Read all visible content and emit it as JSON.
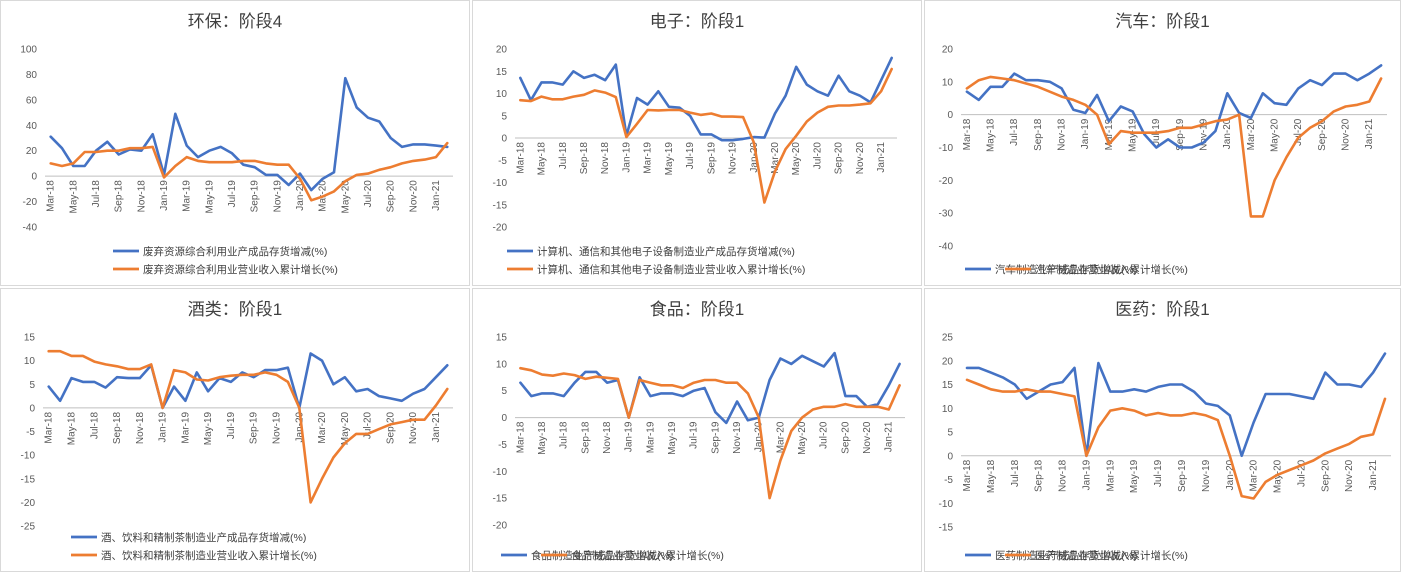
{
  "colors": {
    "series_1": "#4472C4",
    "series_2": "#ED7D31",
    "axis_text": "#595959"
  },
  "dates": [
    "Mar-18",
    "Apr-18",
    "May-18",
    "Jun-18",
    "Jul-18",
    "Aug-18",
    "Sep-18",
    "Oct-18",
    "Nov-18",
    "Dec-18",
    "Jan-19",
    "Feb-19",
    "Mar-19",
    "Apr-19",
    "May-19",
    "Jun-19",
    "Jul-19",
    "Aug-19",
    "Sep-19",
    "Oct-19",
    "Nov-19",
    "Dec-19",
    "Jan-20",
    "Feb-20",
    "Mar-20",
    "Apr-20",
    "May-20",
    "Jun-20",
    "Jul-20",
    "Aug-20",
    "Sep-20",
    "Oct-20",
    "Nov-20",
    "Dec-20",
    "Jan-21",
    "Feb-21"
  ],
  "chart_data": [
    {
      "type": "line",
      "title": "环保：阶段4",
      "ylim": [
        -40,
        100
      ],
      "ystep": 20,
      "legend_position": "bottom-stacked",
      "series": [
        {
          "name": "废弃资源综合利用业产成品存货增减(%)",
          "values": [
            31,
            22,
            8,
            8,
            20,
            27,
            17,
            21,
            20,
            33,
            1,
            49,
            24,
            15,
            20,
            23,
            18,
            9,
            7,
            1,
            1,
            -7,
            2,
            -11,
            -2,
            3,
            77,
            54,
            46,
            43,
            30,
            23,
            25,
            25,
            24,
            23
          ]
        },
        {
          "name": "废弃资源综合利用业营业收入累计增长(%)",
          "values": [
            10,
            8,
            10,
            19,
            19,
            20,
            20,
            22,
            22,
            23,
            -1,
            8,
            15,
            12,
            11,
            11,
            11,
            12,
            12,
            10,
            9,
            9,
            -2,
            -19,
            -16,
            -12,
            -4,
            1,
            2,
            5,
            7,
            10,
            12,
            13,
            15,
            26
          ]
        }
      ]
    },
    {
      "type": "line",
      "title": "电子：阶段1",
      "ylim": [
        -20,
        20
      ],
      "ystep": 5,
      "legend_position": "bottom-stacked",
      "series": [
        {
          "name": "计算机、通信和其他电子设备制造业产成品存货增减(%)",
          "values": [
            13.5,
            8.5,
            12.5,
            12.5,
            12,
            15,
            13.5,
            14.2,
            13,
            16.5,
            0.5,
            9,
            7.5,
            10.5,
            7,
            6.8,
            5,
            0.8,
            0.8,
            -0.5,
            -0.5,
            -0.2,
            0.2,
            0.1,
            5.5,
            9.5,
            16,
            12,
            10.5,
            9.5,
            14,
            10.5,
            9.5,
            8,
            13,
            18
          ]
        },
        {
          "name": "计算机、通信和其他电子设备制造业营业收入累计增长(%)",
          "values": [
            8.5,
            8.3,
            9.3,
            8.7,
            8.7,
            9.3,
            9.7,
            10.7,
            10.2,
            9.2,
            0.2,
            3.2,
            6.3,
            6.2,
            6.3,
            6.3,
            5.7,
            5.2,
            5.5,
            4.8,
            4.8,
            4.7,
            -1,
            -14.5,
            -7.5,
            -2.5,
            0.5,
            3.7,
            5.7,
            7,
            7.3,
            7.3,
            7.5,
            7.8,
            10.5,
            15.5
          ]
        }
      ]
    },
    {
      "type": "line",
      "title": "汽车：阶段1",
      "ylim": [
        -40,
        20
      ],
      "ystep": 10,
      "legend_position": "bottom",
      "series": [
        {
          "name": "汽车制造业产成品存货增减(%)",
          "values": [
            7,
            4.5,
            8.5,
            8.5,
            12.5,
            10.5,
            10.5,
            10,
            8,
            1.5,
            0.5,
            6,
            -2,
            2.5,
            1,
            -6,
            -10,
            -7.5,
            -10,
            -10,
            -8.5,
            -5,
            6.5,
            0.5,
            -1,
            6.5,
            3.5,
            3,
            8,
            10.5,
            9,
            12.5,
            12.5,
            10.5,
            12.5,
            15
          ]
        },
        {
          "name": "汽车制造业营业收入累计增长(%)",
          "values": [
            8,
            10.5,
            11.5,
            11,
            10.5,
            9.5,
            8.5,
            7,
            5.5,
            4.5,
            3,
            0,
            -9,
            -5,
            -5.5,
            -5.5,
            -5.5,
            -5,
            -4,
            -4,
            -3,
            -2,
            -1.5,
            0,
            -31,
            -31,
            -20,
            -13,
            -7,
            -4,
            -2,
            1,
            2.5,
            3,
            4,
            11
          ]
        }
      ]
    },
    {
      "type": "line",
      "title": "酒类：阶段1",
      "ylim": [
        -25,
        15
      ],
      "ystep": 5,
      "legend_position": "bottom-stacked",
      "series": [
        {
          "name": "酒、饮料和精制茶制造业产成品存货增减(%)",
          "values": [
            4.5,
            1.5,
            6.3,
            5.5,
            5.5,
            4.3,
            6.5,
            6.3,
            6.3,
            9,
            0,
            4.5,
            1.5,
            7.5,
            3.5,
            6.3,
            5.5,
            7.5,
            6.5,
            8,
            8,
            8.5,
            0,
            11.5,
            10,
            5,
            6.5,
            3.5,
            4,
            2.5,
            2,
            1.5,
            3,
            4,
            6.5,
            9
          ]
        },
        {
          "name": "酒、饮料和精制茶制造业营业收入累计增长(%)",
          "values": [
            12,
            12,
            11,
            11,
            9.8,
            9.2,
            8.8,
            8.2,
            8.2,
            9.2,
            0,
            8,
            7.5,
            6,
            5.8,
            6.5,
            6.8,
            7,
            7,
            7.5,
            7,
            5.5,
            0,
            -20,
            -15,
            -10.5,
            -7.5,
            -5.5,
            -5.5,
            -4.5,
            -3.5,
            -3,
            -2.5,
            -2.5,
            0.5,
            4
          ]
        }
      ]
    },
    {
      "type": "line",
      "title": "食品：阶段1",
      "ylim": [
        -20,
        15
      ],
      "ystep": 5,
      "legend_position": "bottom",
      "series": [
        {
          "name": "食品制造业产成品存货增减(%)",
          "values": [
            6.5,
            4,
            4.5,
            4.5,
            4,
            6.5,
            8.5,
            8.5,
            6.5,
            7,
            0,
            7.5,
            4,
            4.5,
            4.5,
            4,
            5,
            5.5,
            1,
            -1,
            3,
            -0.5,
            0,
            7,
            11,
            10,
            11.5,
            10.5,
            9.5,
            12,
            4,
            4,
            2,
            2.5,
            6,
            10
          ]
        },
        {
          "name": "食品制造业营业收入累计增长(%)",
          "values": [
            9.2,
            8.8,
            8,
            7.8,
            8.2,
            7.9,
            7.2,
            7.6,
            7.4,
            7.2,
            0,
            7,
            6.5,
            6,
            6,
            5.5,
            6.5,
            7,
            7,
            6.5,
            6.5,
            4.5,
            0,
            -15,
            -8,
            -2.5,
            0,
            1.5,
            2,
            2,
            2.5,
            2,
            2,
            2,
            1.5,
            6
          ]
        }
      ]
    },
    {
      "type": "line",
      "title": "医药：阶段1",
      "ylim": [
        -15,
        25
      ],
      "ystep": 5,
      "legend_position": "bottom",
      "series": [
        {
          "name": "医药制造业产成品存货增减(%)",
          "values": [
            18.5,
            18.5,
            17.5,
            16.5,
            15,
            12,
            13.5,
            15,
            15.5,
            18.5,
            0,
            19.5,
            13.5,
            13.5,
            14,
            13.5,
            14.5,
            15,
            15,
            13.5,
            11,
            10.5,
            8.5,
            0,
            7,
            13,
            13,
            13,
            12.5,
            12,
            17.5,
            15,
            15,
            14.5,
            17.5,
            21.5
          ]
        },
        {
          "name": "医药制造业营业收入累计增长(%)",
          "values": [
            16,
            15,
            14,
            13.5,
            13.5,
            14,
            13.5,
            13.5,
            13,
            12.5,
            0,
            6,
            9.5,
            10,
            9.5,
            8.5,
            9,
            8.5,
            8.5,
            9,
            8.5,
            7.5,
            0,
            -8.5,
            -9,
            -5.5,
            -4,
            -3,
            -2,
            -1,
            0.5,
            1.5,
            2.5,
            4,
            4.5,
            12
          ]
        }
      ]
    }
  ]
}
